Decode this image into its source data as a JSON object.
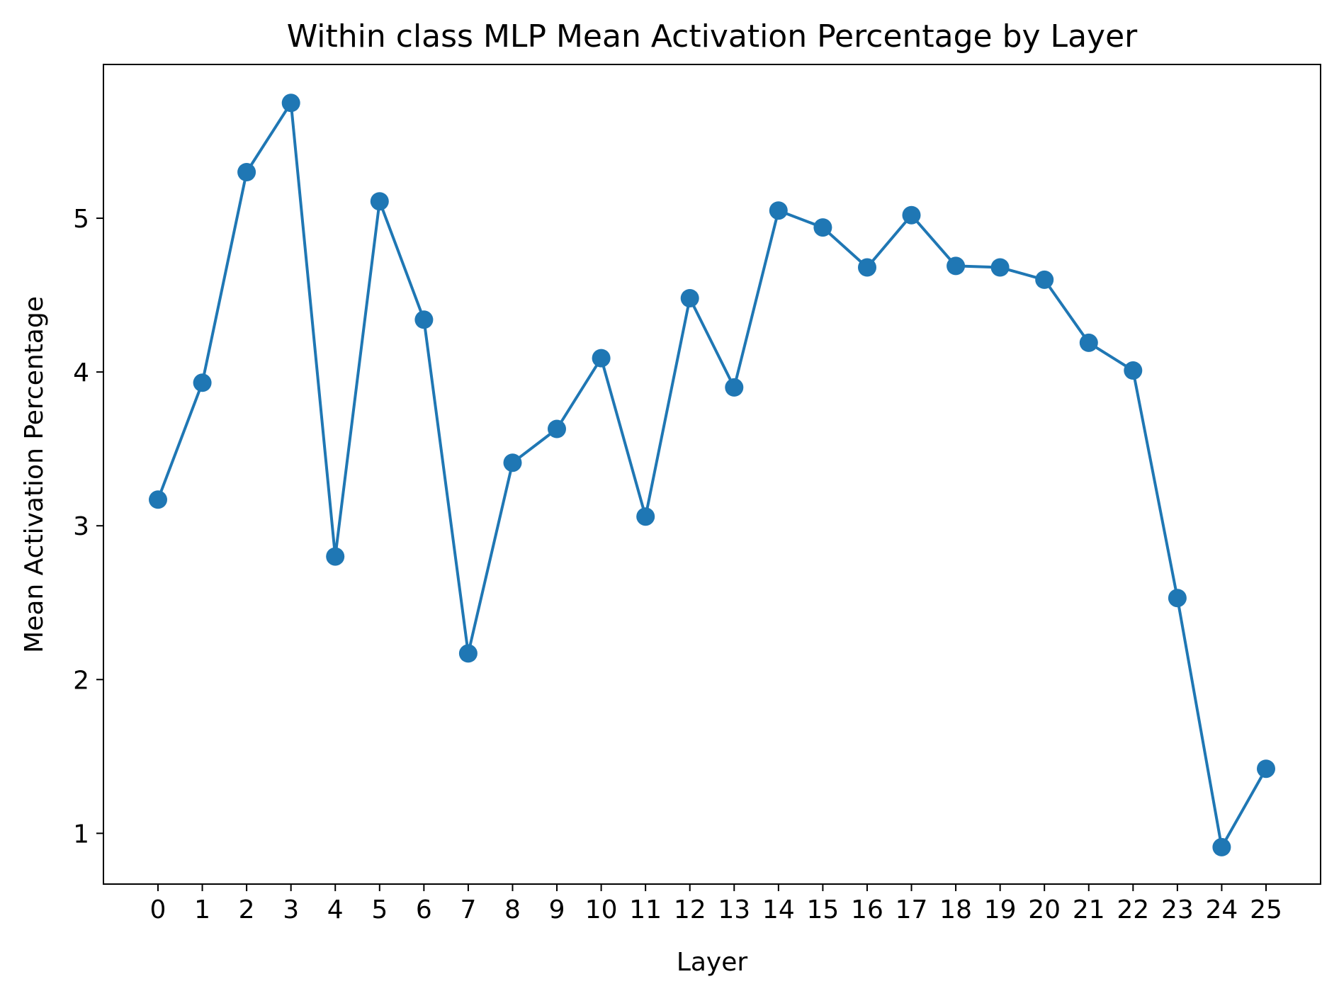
{
  "chart_data": {
    "type": "line",
    "title": "Within class MLP Mean Activation Percentage by Layer",
    "xlabel": "Layer",
    "ylabel": "Mean Activation Percentage",
    "categories": [
      "0",
      "1",
      "2",
      "3",
      "4",
      "5",
      "6",
      "7",
      "8",
      "9",
      "10",
      "11",
      "12",
      "13",
      "14",
      "15",
      "16",
      "17",
      "18",
      "19",
      "20",
      "21",
      "22",
      "23",
      "24",
      "25"
    ],
    "series": [
      {
        "name": "Mean Activation Percentage",
        "color": "#1f77b4",
        "marker": "circle",
        "values": [
          3.17,
          3.93,
          5.3,
          5.75,
          2.8,
          5.11,
          4.34,
          2.17,
          3.41,
          3.63,
          4.09,
          3.06,
          4.48,
          3.9,
          5.05,
          4.94,
          4.68,
          5.02,
          4.69,
          4.68,
          4.6,
          4.19,
          4.01,
          2.53,
          0.91,
          1.42
        ]
      }
    ],
    "yticks": [
      1,
      2,
      3,
      4,
      5
    ],
    "ylim": [
      0.67,
      6.0
    ],
    "grid": false,
    "legend": "none"
  }
}
